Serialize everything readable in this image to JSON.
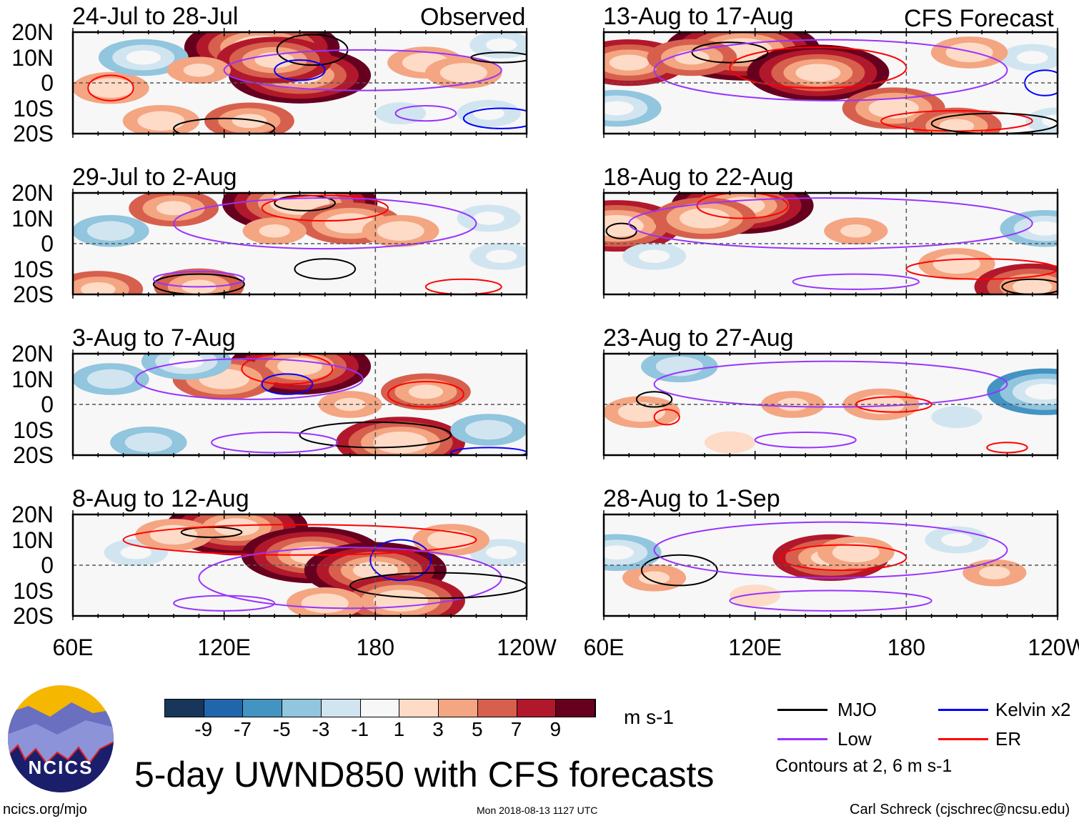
{
  "chart_data": {
    "type": "heatmap",
    "title": "5-day UWND850 with CFS forecasts",
    "units": "m s-1",
    "xticks": [
      "60E",
      "120E",
      "180",
      "120W"
    ],
    "xtick_values": [
      60,
      120,
      180,
      240
    ],
    "yticks": [
      "20N",
      "10N",
      "0",
      "10S",
      "20S"
    ],
    "ytick_values": [
      20,
      10,
      0,
      -10,
      -20
    ],
    "xlim": [
      60,
      240
    ],
    "ylim": [
      -20,
      20
    ],
    "column_labels": [
      "Observed",
      "CFS Forecast"
    ],
    "colorbar": {
      "labels": [
        "-9",
        "-7",
        "-5",
        "-3",
        "-1",
        "1",
        "3",
        "5",
        "7",
        "9"
      ],
      "colors": [
        "#18365a",
        "#2166ac",
        "#4393c3",
        "#92c5de",
        "#d1e5f0",
        "#f7f7f7",
        "#fddbc7",
        "#f4a582",
        "#d6604d",
        "#b2182b",
        "#67001f"
      ]
    },
    "legend": {
      "items": [
        {
          "label": "MJO",
          "color": "#000000"
        },
        {
          "label": "Low",
          "color": "#9933ff"
        },
        {
          "label": "Kelvin x2",
          "color": "#0000ff"
        },
        {
          "label": "ER",
          "color": "#ff0000"
        }
      ],
      "note": "Contours at 2, 6 m s-1"
    },
    "panels": [
      {
        "title": "24-Jul to 28-Jul",
        "anoms": [
          [
            135,
            14,
            10
          ],
          [
            150,
            3,
            9
          ],
          [
            140,
            9,
            7
          ],
          [
            200,
            8,
            4
          ],
          [
            215,
            4,
            4
          ],
          [
            75,
            -2,
            4
          ],
          [
            95,
            -15,
            4
          ],
          [
            130,
            -15,
            5
          ],
          [
            88,
            10,
            -5
          ],
          [
            225,
            -12,
            -3
          ],
          [
            190,
            -12,
            -2
          ],
          [
            230,
            15,
            -3
          ],
          [
            110,
            5,
            3
          ]
        ],
        "contours": [
          [
            "MJO",
            155,
            13,
            14,
            6
          ],
          [
            "Kelvin",
            150,
            5,
            10,
            4
          ],
          [
            "Low",
            175,
            5,
            55,
            8
          ],
          [
            "ER",
            75,
            -2,
            9,
            5
          ],
          [
            "MJO",
            230,
            10,
            12,
            2
          ],
          [
            "Low",
            200,
            -12,
            12,
            3
          ],
          [
            "Kelvin",
            230,
            -14,
            15,
            4
          ],
          [
            "MJO",
            120,
            -18,
            20,
            4
          ]
        ]
      },
      {
        "title": "29-Jul to 2-Aug",
        "anoms": [
          [
            150,
            16,
            10
          ],
          [
            170,
            8,
            6
          ],
          [
            100,
            14,
            5
          ],
          [
            190,
            5,
            4
          ],
          [
            70,
            -18,
            5
          ],
          [
            110,
            -17,
            5
          ],
          [
            75,
            5,
            -4
          ],
          [
            230,
            -5,
            -3
          ],
          [
            225,
            10,
            -3
          ],
          [
            140,
            5,
            3
          ]
        ],
        "contours": [
          [
            "MJO",
            152,
            16,
            12,
            3
          ],
          [
            "ER",
            160,
            14,
            25,
            5
          ],
          [
            "Low",
            160,
            8,
            60,
            10
          ],
          [
            "MJO",
            110,
            -16,
            18,
            4
          ],
          [
            "MJO",
            160,
            -10,
            12,
            4
          ],
          [
            "ER",
            215,
            -17,
            15,
            3
          ],
          [
            "Low",
            110,
            -14,
            18,
            3
          ]
        ]
      },
      {
        "title": "3-Aug to 7-Aug",
        "anoms": [
          [
            150,
            15,
            9
          ],
          [
            120,
            10,
            6
          ],
          [
            190,
            -15,
            8
          ],
          [
            200,
            5,
            5
          ],
          [
            75,
            10,
            -4
          ],
          [
            90,
            -15,
            -4
          ],
          [
            225,
            -10,
            -4
          ],
          [
            105,
            17,
            -5
          ],
          [
            170,
            0,
            3
          ]
        ],
        "contours": [
          [
            "ER",
            145,
            14,
            18,
            6
          ],
          [
            "Kelvin",
            145,
            8,
            10,
            4
          ],
          [
            "Low",
            130,
            10,
            45,
            8
          ],
          [
            "ER",
            200,
            4,
            15,
            5
          ],
          [
            "MJO",
            180,
            -12,
            30,
            5
          ],
          [
            "Low",
            140,
            -15,
            25,
            4
          ],
          [
            "Kelvin",
            225,
            -19,
            15,
            2
          ]
        ]
      },
      {
        "title": "8-Aug to 12-Aug",
        "anoms": [
          [
            125,
            15,
            9
          ],
          [
            155,
            4,
            9
          ],
          [
            180,
            -2,
            9
          ],
          [
            190,
            -14,
            8
          ],
          [
            230,
            5,
            -3
          ],
          [
            85,
            5,
            -3
          ],
          [
            160,
            -15,
            4
          ],
          [
            100,
            12,
            4
          ],
          [
            210,
            10,
            4
          ]
        ],
        "contours": [
          [
            "MJO",
            115,
            13,
            12,
            2
          ],
          [
            "Kelvin",
            190,
            2,
            12,
            8
          ],
          [
            "ER",
            150,
            10,
            70,
            6
          ],
          [
            "Low",
            170,
            -5,
            60,
            12
          ],
          [
            "MJO",
            205,
            -8,
            35,
            5
          ],
          [
            "Low",
            120,
            -15,
            20,
            3
          ]
        ]
      },
      {
        "title": "13-Aug to 17-Aug",
        "anoms": [
          [
            115,
            13,
            10
          ],
          [
            145,
            4,
            9
          ],
          [
            70,
            8,
            7
          ],
          [
            175,
            -10,
            6
          ],
          [
            200,
            -17,
            5
          ],
          [
            65,
            -10,
            -5
          ],
          [
            230,
            10,
            -3
          ],
          [
            240,
            -15,
            -3
          ],
          [
            205,
            12,
            4
          ],
          [
            95,
            10,
            5
          ]
        ],
        "contours": [
          [
            "MJO",
            110,
            12,
            15,
            4
          ],
          [
            "ER",
            145,
            6,
            35,
            8
          ],
          [
            "Low",
            150,
            5,
            70,
            12
          ],
          [
            "ER",
            200,
            -15,
            30,
            4
          ],
          [
            "MJO",
            215,
            -16,
            25,
            4
          ],
          [
            "Kelvin",
            235,
            0,
            8,
            5
          ]
        ]
      },
      {
        "title": "18-Aug to 22-Aug",
        "anoms": [
          [
            65,
            7,
            8
          ],
          [
            115,
            15,
            9
          ],
          [
            100,
            10,
            6
          ],
          [
            200,
            -8,
            4
          ],
          [
            230,
            -17,
            7
          ],
          [
            235,
            6,
            -5
          ],
          [
            80,
            -5,
            -3
          ],
          [
            160,
            5,
            3
          ]
        ],
        "contours": [
          [
            "MJO",
            67,
            5,
            6,
            3
          ],
          [
            "ER",
            115,
            15,
            18,
            5
          ],
          [
            "Low",
            150,
            8,
            80,
            10
          ],
          [
            "ER",
            210,
            -10,
            30,
            4
          ],
          [
            "MJO",
            230,
            -17,
            12,
            3
          ],
          [
            "Low",
            160,
            -15,
            25,
            3
          ]
        ]
      },
      {
        "title": "23-Aug to 27-Aug",
        "anoms": [
          [
            75,
            -3,
            4
          ],
          [
            170,
            0,
            4
          ],
          [
            135,
            0,
            3
          ],
          [
            235,
            5,
            -7
          ],
          [
            90,
            15,
            -4
          ],
          [
            200,
            -5,
            -2
          ],
          [
            110,
            -15,
            2
          ]
        ],
        "contours": [
          [
            "MJO",
            80,
            2,
            7,
            3
          ],
          [
            "ER",
            85,
            -5,
            5,
            3
          ],
          [
            "Low",
            150,
            8,
            70,
            9
          ],
          [
            "ER",
            175,
            0,
            15,
            3
          ],
          [
            "Low",
            140,
            -14,
            20,
            3
          ],
          [
            "ER",
            220,
            -17,
            8,
            2
          ]
        ]
      },
      {
        "title": "28-Aug to 1-Sep",
        "anoms": [
          [
            150,
            3,
            7
          ],
          [
            160,
            5,
            4
          ],
          [
            80,
            -5,
            3
          ],
          [
            65,
            5,
            -5
          ],
          [
            215,
            -3,
            3
          ],
          [
            200,
            10,
            -3
          ],
          [
            120,
            -12,
            2
          ]
        ],
        "contours": [
          [
            "MJO",
            90,
            -2,
            15,
            6
          ],
          [
            "ER",
            155,
            3,
            25,
            5
          ],
          [
            "Low",
            150,
            6,
            70,
            11
          ],
          [
            "Low",
            150,
            -14,
            40,
            4
          ]
        ]
      }
    ]
  },
  "footer": {
    "site": "ncics.org/mjo",
    "timestamp": "Mon 2018-08-13 1127 UTC",
    "author": "Carl Schreck (cjschrec@ncsu.edu)",
    "logo_text": "NCICS"
  }
}
